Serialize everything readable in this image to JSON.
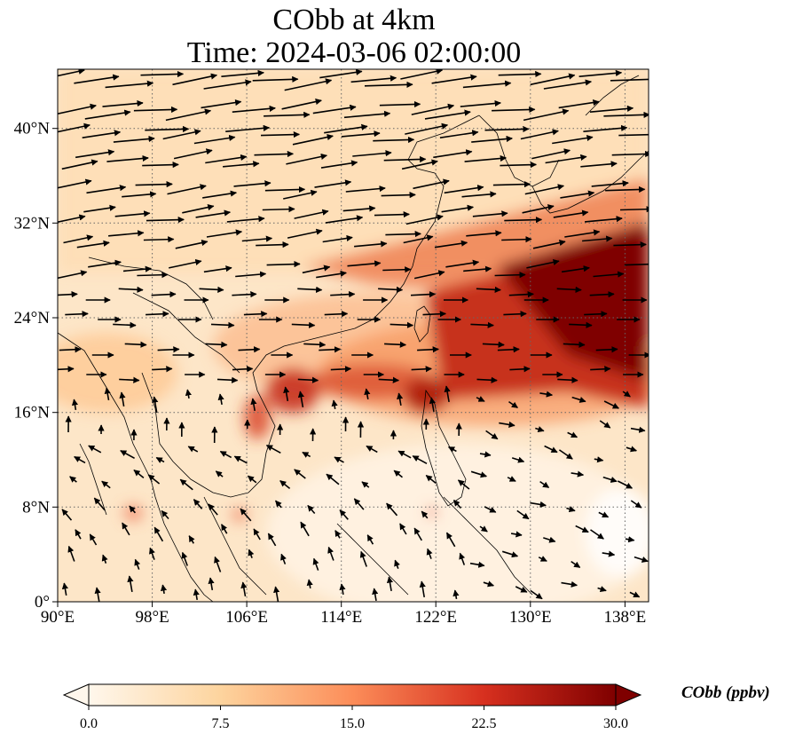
{
  "title": {
    "line1": "CObb at 4km",
    "line2": "Time: 2024-03-06 02:00:00"
  },
  "map": {
    "lon_range": [
      90,
      140
    ],
    "lat_range": [
      0,
      45
    ],
    "x_ticks": [
      "90°E",
      "98°E",
      "106°E",
      "114°E",
      "122°E",
      "130°E",
      "138°E"
    ],
    "y_ticks": [
      "0°",
      "8°N",
      "16°N",
      "24°N",
      "32°N",
      "40°N"
    ],
    "gridlines": "dotted",
    "wind_vectors": "shown",
    "colormap": [
      "#fff7ec",
      "#fdd49e",
      "#fc8d59",
      "#d7301f",
      "#7f0000"
    ]
  },
  "colorbar": {
    "label": "CObb (ppbv)",
    "ticks": [
      "0.0",
      "7.5",
      "15.0",
      "22.5",
      "30.0"
    ],
    "range": [
      0,
      30
    ]
  }
}
